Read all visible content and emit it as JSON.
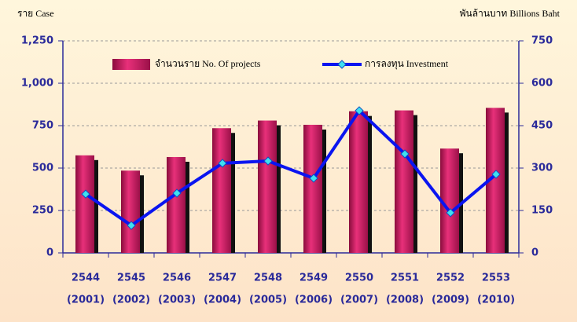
{
  "chart_data": {
    "type": "bar_line",
    "y_label": "ราย  Case",
    "y2_label": "พันล้านบาท  Billions Baht",
    "categories": [
      [
        "2544",
        "(2001)"
      ],
      [
        "2545",
        "(2002)"
      ],
      [
        "2546",
        "(2003)"
      ],
      [
        "2547",
        "(2004)"
      ],
      [
        "2548",
        "(2005)"
      ],
      [
        "2549",
        "(2006)"
      ],
      [
        "2550",
        "(2007)"
      ],
      [
        "2551",
        "(2008)"
      ],
      [
        "2552",
        "(2009)"
      ],
      [
        "2553",
        "(2010)"
      ]
    ],
    "series": [
      {
        "name": "จำนวนราย  No. Of projects",
        "type": "bar",
        "color": "#c8185c",
        "values": [
          575,
          485,
          565,
          735,
          780,
          755,
          835,
          840,
          615,
          855
        ]
      },
      {
        "name": "การลงทุน  Investment",
        "type": "line",
        "axis": "y2",
        "color": "#0a14f0",
        "marker_color": "#40e0f0",
        "values": [
          208,
          97,
          211,
          317,
          325,
          264,
          503,
          350,
          142,
          278
        ]
      }
    ],
    "ylim": [
      0,
      1250
    ],
    "yticks": [
      0,
      250,
      500,
      750,
      {
        "value": 1000,
        "label": "1,000"
      },
      {
        "value": 1250,
        "label": "1,250"
      }
    ],
    "y2lim": [
      0,
      750
    ],
    "y2ticks": [
      0,
      150,
      300,
      450,
      600,
      750
    ],
    "grid": true
  }
}
